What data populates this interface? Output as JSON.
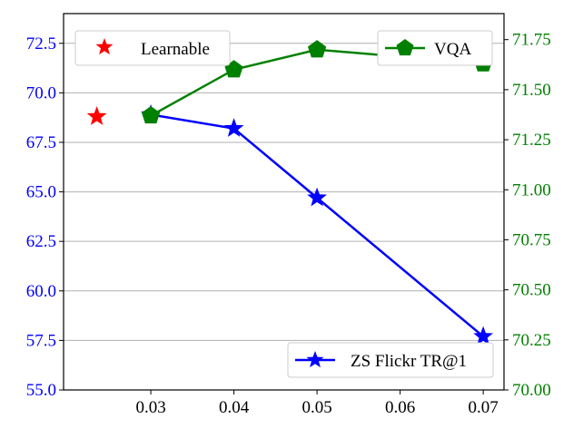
{
  "chart_data": {
    "type": "line",
    "title": "",
    "xlabel": "",
    "ylabel_left": "",
    "ylabel_right": "",
    "x_ticks": [
      "0.03",
      "0.04",
      "0.05",
      "0.06",
      "0.07"
    ],
    "xlim": [
      0.0195,
      0.0725
    ],
    "left_axis": {
      "ylim": [
        55.0,
        74.0
      ],
      "ticks": [
        55.0,
        57.5,
        60.0,
        62.5,
        65.0,
        67.5,
        70.0,
        72.5
      ],
      "tick_labels": [
        "55.0",
        "57.5",
        "60.0",
        "62.5",
        "65.0",
        "67.5",
        "70.0",
        "72.5"
      ],
      "color": "#0000ff"
    },
    "right_axis": {
      "ylim": [
        70.0,
        71.88
      ],
      "ticks": [
        70.0,
        70.25,
        70.5,
        70.75,
        71.0,
        71.25,
        71.5,
        71.75
      ],
      "tick_labels": [
        "70.00",
        "70.25",
        "70.50",
        "70.75",
        "71.00",
        "71.25",
        "71.50",
        "71.75"
      ],
      "color": "#008000"
    },
    "grid": "horizontal",
    "series": [
      {
        "name": "Learnable",
        "axis": "left",
        "marker": "star",
        "line": false,
        "color": "#ff0000",
        "x": [
          0.0235
        ],
        "y": [
          68.8
        ]
      },
      {
        "name": "ZS Flickr TR@1",
        "axis": "left",
        "marker": "star",
        "line": true,
        "color": "#0000ff",
        "x": [
          0.03,
          0.04,
          0.05,
          0.07
        ],
        "y": [
          68.9,
          68.2,
          64.7,
          57.7
        ]
      },
      {
        "name": "VQA",
        "axis": "right",
        "marker": "pentagon",
        "line": true,
        "color": "#008000",
        "x": [
          0.03,
          0.04,
          0.05,
          0.07
        ],
        "y": [
          71.37,
          71.6,
          71.7,
          71.63
        ]
      }
    ],
    "legends": [
      {
        "label": "Learnable",
        "position": "upper-left"
      },
      {
        "label": "VQA",
        "position": "upper-right"
      },
      {
        "label": "ZS Flickr TR@1",
        "position": "lower-right"
      }
    ]
  }
}
